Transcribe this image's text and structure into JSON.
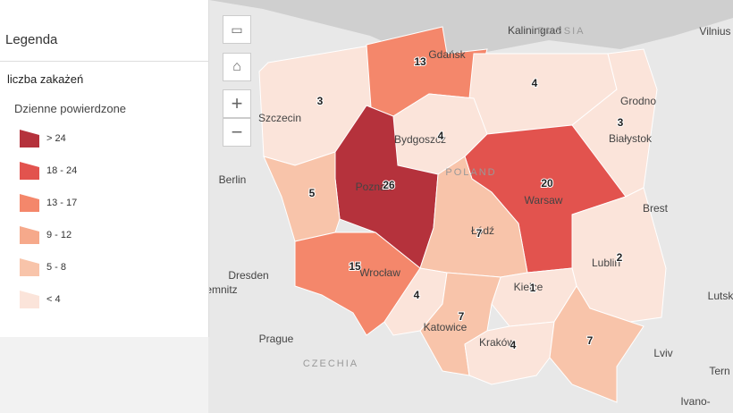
{
  "legend": {
    "title": "Legenda",
    "layer": "liczba zakażeń",
    "subtitle": "Dzienne powierdzone",
    "classes": [
      {
        "label": "> 24",
        "color": "#b5323c"
      },
      {
        "label": "18 - 24",
        "color": "#e2534e"
      },
      {
        "label": "13 - 17",
        "color": "#f4876b"
      },
      {
        "label": "9 - 12",
        "color": "#f6a98b"
      },
      {
        "label": "5 - 8",
        "color": "#f8c4aa"
      },
      {
        "label": "< 4",
        "color": "#fbe4da"
      }
    ]
  },
  "map": {
    "regions": [
      {
        "value": 3,
        "color": "#fbe4da"
      },
      {
        "value": 13,
        "color": "#f4876b"
      },
      {
        "value": 4,
        "color": "#fbe4da"
      },
      {
        "value": 3,
        "color": "#fbe4da"
      },
      {
        "value": 4,
        "color": "#fbe4da"
      },
      {
        "value": 26,
        "color": "#b5323c"
      },
      {
        "value": 20,
        "color": "#e2534e"
      },
      {
        "value": 5,
        "color": "#f8c4aa"
      },
      {
        "value": 7,
        "color": "#f8c4aa"
      },
      {
        "value": 2,
        "color": "#fbe4da"
      },
      {
        "value": 15,
        "color": "#f4876b"
      },
      {
        "value": 4,
        "color": "#fbe4da"
      },
      {
        "value": 1,
        "color": "#fbe4da"
      },
      {
        "value": 7,
        "color": "#f8c4aa"
      },
      {
        "value": 4,
        "color": "#fbe4da"
      },
      {
        "value": 7,
        "color": "#f8c4aa"
      }
    ],
    "places": [
      "Kaliningrad",
      "RUSSIA",
      "Vilnius",
      "Grodno",
      "Gdańsk",
      "Szczecin",
      "Bydgoszcz",
      "Białystok",
      "POLAND",
      "Berlin",
      "Poznań",
      "Warsaw",
      "Brest",
      "Łódź",
      "Lublin",
      "Dresden",
      "emnitz",
      "Wrocław",
      "Kielce",
      "Lutsk",
      "Katowice",
      "Prague",
      "Kraków",
      "Lviv",
      "CZECHIA",
      "Tern",
      "Ivano-"
    ]
  }
}
